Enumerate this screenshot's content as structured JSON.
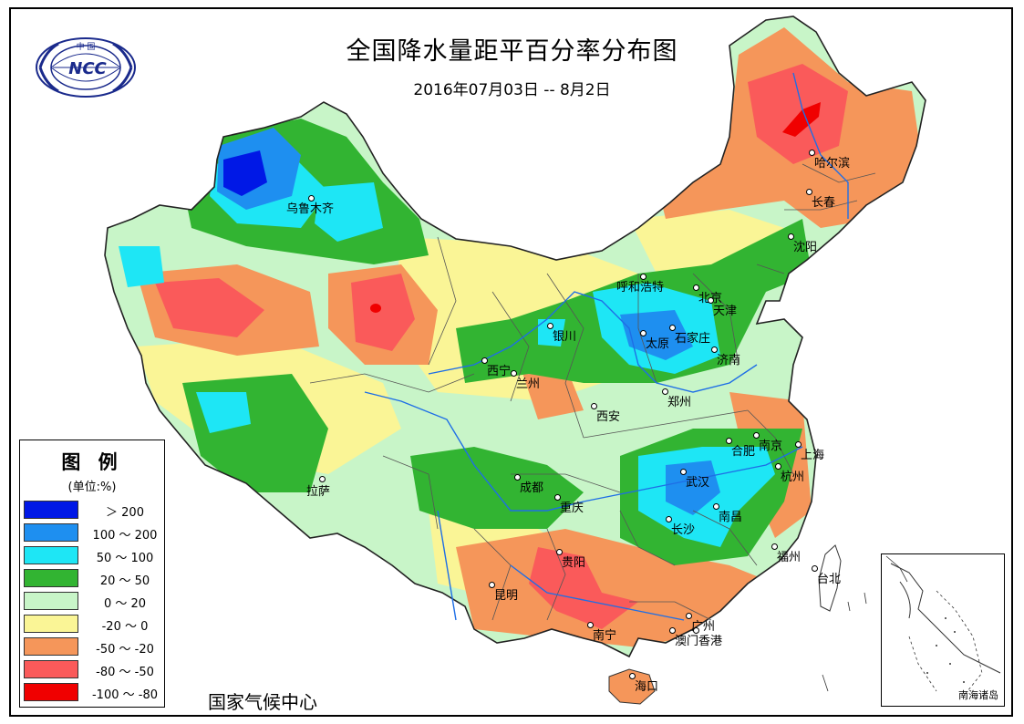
{
  "title": "全国降水量距平百分率分布图",
  "subtitle": "2016年07月03日 -- 8月2日",
  "organization": "国家气候中心",
  "logo": {
    "text": "NCC",
    "ring_text": "中 国"
  },
  "legend": {
    "title": "图 例",
    "unit": "(单位:%)",
    "items": [
      {
        "label": "＞ 200",
        "color": "#0018e6"
      },
      {
        "label": "100 ～ 200",
        "color": "#1e8ff0"
      },
      {
        "label": "50 ～ 100",
        "color": "#1ee6f5"
      },
      {
        "label": "20 ～ 50",
        "color": "#32b432"
      },
      {
        "label": "0 ～ 20",
        "color": "#c8f5c8"
      },
      {
        "label": "-20 ～ 0",
        "color": "#faf596"
      },
      {
        "label": "-50 ～ -20",
        "color": "#f5965a"
      },
      {
        "label": "-80 ～ -50",
        "color": "#fa5a5a"
      },
      {
        "label": "-100 ～ -80",
        "color": "#f00000"
      }
    ]
  },
  "inset_label": "南海诸岛",
  "cities": [
    {
      "name": "乌鲁木齐"
    },
    {
      "name": "哈尔滨"
    },
    {
      "name": "长春"
    },
    {
      "name": "沈阳"
    },
    {
      "name": "呼和浩特"
    },
    {
      "name": "北京"
    },
    {
      "name": "天津"
    },
    {
      "name": "银川"
    },
    {
      "name": "太原"
    },
    {
      "name": "石家庄"
    },
    {
      "name": "济南"
    },
    {
      "name": "西宁"
    },
    {
      "name": "兰州"
    },
    {
      "name": "郑州"
    },
    {
      "name": "西安"
    },
    {
      "name": "合肥"
    },
    {
      "name": "南京"
    },
    {
      "name": "上海"
    },
    {
      "name": "拉萨"
    },
    {
      "name": "成都"
    },
    {
      "name": "武汉"
    },
    {
      "name": "杭州"
    },
    {
      "name": "重庆"
    },
    {
      "name": "南昌"
    },
    {
      "name": "长沙"
    },
    {
      "name": "福州"
    },
    {
      "name": "台北"
    },
    {
      "name": "贵阳"
    },
    {
      "name": "昆明"
    },
    {
      "name": "南宁"
    },
    {
      "name": "广州"
    },
    {
      "name": "澳门"
    },
    {
      "name": "香港"
    },
    {
      "name": "海口"
    }
  ]
}
